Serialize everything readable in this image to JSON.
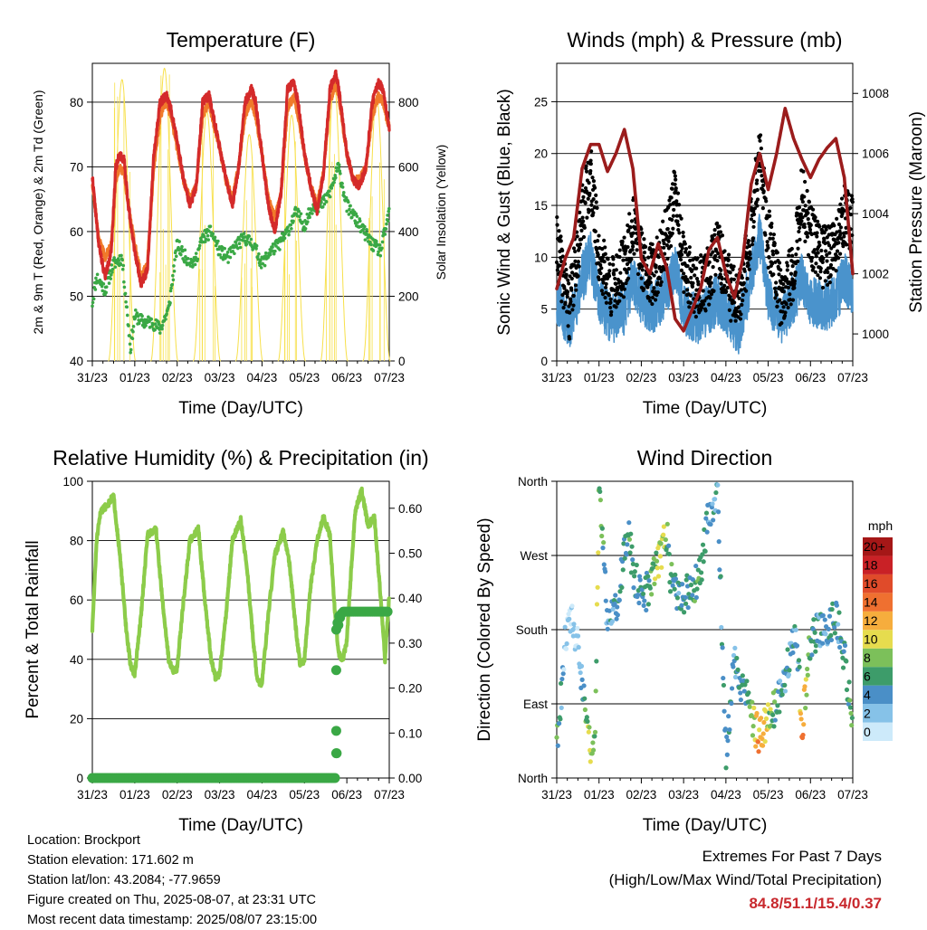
{
  "info": {
    "location": "Location: Brockport",
    "elevation": "Station elevation: 171.602 m",
    "latlon": "Station lat/lon: 43.2084; -77.9659",
    "created": "Figure created on Thu, 2025-08-07, at 23:31 UTC",
    "recent": "Most recent data timestamp: 2025/08/07 23:15:00"
  },
  "extremes": {
    "title": "Extremes For Past 7 Days",
    "subtitle": "(High/Low/Max Wind/Total Precipitation)",
    "values": "84.8/51.1/15.4/0.37"
  },
  "colors": {
    "temp9m": "#d42a2a",
    "temp2m": "#f07a2a",
    "dewpoint": "#3aa845",
    "solar": "#f7e04a",
    "wind": "#4a93cc",
    "gust": "#000000",
    "pressure": "#9b1c1c",
    "rh": "#8ccc4a",
    "precip": "#3aa845"
  },
  "chart_data": [
    {
      "type": "line",
      "title": "Temperature (F)",
      "xlabel": "Time (Day/UTC)",
      "ylabel": "2m & 9m T (Red, Orange) & 2m Td (Green)",
      "y2label": "Solar Insolation (Yellow)",
      "x_ticks": [
        "31/23",
        "01/23",
        "02/23",
        "03/23",
        "04/23",
        "05/23",
        "06/23",
        "07/23"
      ],
      "ylim": [
        40,
        86
      ],
      "yticks": [
        40,
        50,
        60,
        70,
        80
      ],
      "y2lim": [
        0,
        920
      ],
      "y2ticks": [
        0,
        200,
        400,
        600,
        800
      ],
      "x_range_days": [
        0,
        7
      ],
      "series": [
        {
          "name": "9m T",
          "color": "#d42a2a",
          "x": [
            0,
            0.15,
            0.3,
            0.45,
            0.55,
            0.65,
            0.75,
            0.85,
            1.0,
            1.15,
            1.3,
            1.45,
            1.6,
            1.75,
            1.85,
            2.0,
            2.15,
            2.3,
            2.45,
            2.6,
            2.75,
            2.85,
            3.0,
            3.15,
            3.3,
            3.45,
            3.6,
            3.75,
            3.85,
            4.0,
            4.15,
            4.3,
            4.45,
            4.6,
            4.75,
            4.85,
            5.0,
            5.15,
            5.3,
            5.45,
            5.6,
            5.75,
            5.85,
            6.0,
            6.15,
            6.3,
            6.45,
            6.6,
            6.75,
            6.85,
            7.0
          ],
          "y": [
            68.5,
            58,
            53,
            57,
            70,
            72,
            71,
            64,
            57,
            52,
            54,
            72,
            80,
            81,
            79,
            74,
            68,
            64,
            67,
            80,
            81,
            78,
            73,
            68,
            64,
            70,
            80,
            82,
            80,
            72,
            64,
            60,
            66,
            82,
            83,
            80,
            72,
            67,
            63,
            69,
            82,
            84.5,
            80,
            72,
            68,
            67,
            70,
            80,
            83,
            82,
            76
          ]
        },
        {
          "name": "2m T",
          "color": "#f07a2a",
          "x": [
            0,
            0.15,
            0.3,
            0.45,
            0.55,
            0.65,
            0.75,
            0.85,
            1.0,
            1.15,
            1.3,
            1.45,
            1.6,
            1.75,
            1.85,
            2.0,
            2.15,
            2.3,
            2.45,
            2.6,
            2.75,
            2.85,
            3.0,
            3.15,
            3.3,
            3.45,
            3.6,
            3.75,
            3.85,
            4.0,
            4.15,
            4.3,
            4.45,
            4.6,
            4.75,
            4.85,
            5.0,
            5.15,
            5.3,
            5.45,
            5.6,
            5.75,
            5.85,
            6.0,
            6.15,
            6.3,
            6.45,
            6.6,
            6.75,
            6.85,
            7.0
          ],
          "y": [
            67.5,
            59,
            56,
            58,
            68,
            70,
            69,
            64,
            58,
            53,
            55,
            70,
            78,
            80,
            78,
            73,
            68,
            65,
            67,
            78,
            80,
            77,
            73,
            68,
            65,
            70,
            78,
            80,
            78,
            72,
            65,
            62,
            66,
            79,
            81,
            78,
            72,
            67,
            64,
            69,
            80,
            83,
            79,
            72,
            68,
            68,
            70,
            78,
            81,
            80,
            76
          ]
        },
        {
          "name": "2m Td",
          "color": "#3aa845",
          "x": [
            0,
            0.1,
            0.3,
            0.5,
            0.7,
            0.9,
            1.0,
            1.2,
            1.4,
            1.6,
            1.8,
            2.0,
            2.2,
            2.4,
            2.6,
            2.8,
            3.0,
            3.2,
            3.4,
            3.6,
            3.8,
            4.0,
            4.2,
            4.4,
            4.6,
            4.8,
            5.0,
            5.2,
            5.4,
            5.6,
            5.8,
            6.0,
            6.2,
            6.4,
            6.6,
            6.8,
            7.0
          ],
          "y": [
            49,
            53,
            51,
            55,
            56,
            42,
            47,
            46,
            46,
            45,
            48,
            58,
            56,
            55,
            59,
            60,
            57,
            56,
            58,
            59,
            58,
            55,
            57,
            58,
            60,
            63,
            61,
            64,
            64,
            66,
            70,
            64,
            62,
            60,
            58,
            57,
            63
          ]
        },
        {
          "name": "Solar Insolation",
          "color": "#f7e04a",
          "axis": "y2",
          "peaks_day": [
            0.7,
            1.7,
            2.7,
            3.7,
            4.7,
            5.7,
            6.7
          ],
          "peaks_value": [
            870,
            905,
            770,
            700,
            760,
            860,
            820
          ]
        }
      ]
    },
    {
      "type": "scatter",
      "title": "Winds (mph) & Pressure (mb)",
      "xlabel": "Time (Day/UTC)",
      "ylabel": "Sonic Wind & Gust (Blue, Black)",
      "y2label": "Station Pressure (Maroon)",
      "x_ticks": [
        "31/23",
        "01/23",
        "02/23",
        "03/23",
        "04/23",
        "05/23",
        "06/23",
        "07/23"
      ],
      "ylim": [
        0,
        28.7
      ],
      "yticks": [
        0,
        5,
        10,
        15,
        20,
        25
      ],
      "y2lim": [
        999.1,
        1009
      ],
      "y2ticks": [
        1000,
        1002,
        1004,
        1006,
        1008
      ],
      "x_range_days": [
        0,
        7
      ],
      "series": [
        {
          "name": "Gust",
          "color": "#000000",
          "x": [
            0,
            0.3,
            0.6,
            0.8,
            1.0,
            1.3,
            1.6,
            1.8,
            2.0,
            2.3,
            2.6,
            2.8,
            3.0,
            3.3,
            3.6,
            3.8,
            4.0,
            4.3,
            4.6,
            4.8,
            5.0,
            5.3,
            5.6,
            5.8,
            6.0,
            6.3,
            6.6,
            6.8,
            7.0
          ],
          "y": [
            11,
            5,
            14,
            18,
            10,
            7,
            9,
            13,
            10,
            8,
            12,
            16,
            9,
            7,
            8,
            11,
            8,
            5,
            13,
            20,
            12,
            6,
            9,
            16,
            12,
            10,
            11,
            14,
            13
          ]
        },
        {
          "name": "Wind",
          "color": "#4a93cc",
          "x": [
            0,
            0.3,
            0.6,
            0.8,
            1.0,
            1.3,
            1.6,
            1.8,
            2.0,
            2.3,
            2.6,
            2.8,
            3.0,
            3.3,
            3.6,
            3.8,
            4.0,
            4.3,
            4.6,
            4.8,
            5.0,
            5.3,
            5.6,
            5.8,
            6.0,
            6.3,
            6.6,
            6.8,
            7.0
          ],
          "y": [
            6,
            3,
            8,
            10,
            6,
            4,
            5,
            8,
            6,
            5,
            7,
            9,
            5,
            4,
            5,
            6,
            5,
            3,
            8,
            12,
            6,
            4,
            6,
            8,
            6,
            5,
            6,
            8,
            7
          ]
        },
        {
          "name": "Station Pressure",
          "color": "#9b1c1c",
          "axis": "y2",
          "x": [
            0,
            0.2,
            0.4,
            0.6,
            0.8,
            1.0,
            1.2,
            1.4,
            1.6,
            1.8,
            2.0,
            2.2,
            2.4,
            2.6,
            2.8,
            3.0,
            3.2,
            3.4,
            3.6,
            3.8,
            4.0,
            4.2,
            4.4,
            4.6,
            4.8,
            5.0,
            5.2,
            5.4,
            5.6,
            5.8,
            6.0,
            6.2,
            6.4,
            6.6,
            6.8,
            7.0
          ],
          "y": [
            1001.5,
            1002.5,
            1003.2,
            1005.5,
            1006.3,
            1006.3,
            1005.4,
            1006.0,
            1006.8,
            1005.5,
            1002.5,
            1002.0,
            1003.0,
            1002.2,
            1000.5,
            1000.1,
            1000.8,
            1001.5,
            1002.8,
            1003.2,
            1002.0,
            1001.2,
            1002.5,
            1005.0,
            1006.0,
            1004.8,
            1006.0,
            1007.5,
            1006.5,
            1005.8,
            1005.2,
            1005.8,
            1006.2,
            1006.5,
            1005.2,
            1002.0
          ]
        }
      ]
    },
    {
      "type": "line",
      "title": "Relative Humidity (%) & Precipitation (in)",
      "xlabel": "Time (Day/UTC)",
      "ylabel": "Percent & Total Rainfall",
      "x_ticks": [
        "31/23",
        "01/23",
        "02/23",
        "03/23",
        "04/23",
        "05/23",
        "06/23",
        "07/23"
      ],
      "ylim": [
        0,
        100
      ],
      "yticks": [
        0,
        20,
        40,
        60,
        80,
        100
      ],
      "y2lim": [
        0,
        0.66
      ],
      "y2ticks": [
        "0.00",
        "0.10",
        "0.20",
        "0.30",
        "0.40",
        "0.50",
        "0.60"
      ],
      "x_range_days": [
        0,
        7
      ],
      "series": [
        {
          "name": "RH",
          "color": "#8ccc4a",
          "x": [
            0,
            0.1,
            0.2,
            0.35,
            0.5,
            0.65,
            0.8,
            0.9,
            1.0,
            1.15,
            1.3,
            1.5,
            1.65,
            1.8,
            1.9,
            2.0,
            2.15,
            2.3,
            2.5,
            2.65,
            2.8,
            2.9,
            3.0,
            3.15,
            3.3,
            3.5,
            3.65,
            3.8,
            3.9,
            4.0,
            4.15,
            4.3,
            4.5,
            4.65,
            4.8,
            4.9,
            5.0,
            5.15,
            5.3,
            5.45,
            5.6,
            5.7,
            5.8,
            5.9,
            6.0,
            6.1,
            6.2,
            6.35,
            6.5,
            6.65,
            6.8,
            6.9,
            7.0
          ],
          "y": [
            50,
            80,
            90,
            92,
            95,
            75,
            50,
            38,
            35,
            55,
            82,
            84,
            60,
            40,
            36,
            37,
            60,
            80,
            84,
            60,
            40,
            34,
            35,
            55,
            80,
            87,
            70,
            45,
            32,
            32,
            55,
            75,
            83,
            72,
            50,
            38,
            40,
            65,
            80,
            88,
            82,
            60,
            42,
            40,
            46,
            70,
            90,
            97,
            85,
            88,
            60,
            40,
            62
          ]
        },
        {
          "name": "Precipitation",
          "color": "#3aa845",
          "axis": "y2",
          "x": [
            0,
            5.55,
            5.75,
            5.76,
            5.77,
            5.78,
            5.8,
            5.82,
            5.85,
            5.9,
            6.0,
            7.0
          ],
          "y": [
            0,
            0,
            0.0,
            0.055,
            0.105,
            0.24,
            0.34,
            0.35,
            0.36,
            0.37,
            0.37,
            0.37
          ]
        }
      ]
    },
    {
      "type": "scatter",
      "title": "Wind Direction",
      "xlabel": "Time (Day/UTC)",
      "ylabel": "Direction (Colored By Speed)",
      "x_ticks": [
        "31/23",
        "01/23",
        "02/23",
        "03/23",
        "04/23",
        "05/23",
        "06/23",
        "07/23"
      ],
      "yticks": [
        "North",
        "East",
        "South",
        "West",
        "North"
      ],
      "ylim": [
        0,
        360
      ],
      "x_range_days": [
        0,
        7
      ],
      "legend": {
        "title": "mph",
        "labels": [
          "0",
          "2",
          "4",
          "6",
          "8",
          "10",
          "12",
          "14",
          "16",
          "18",
          "20+"
        ],
        "colors": [
          "#cdeafa",
          "#86c2e8",
          "#4a8fc7",
          "#3d9c6a",
          "#7cc05a",
          "#e6dc4e",
          "#f6ad3d",
          "#ef7030",
          "#e04b2a",
          "#c92126",
          "#a51717"
        ]
      },
      "series": [
        {
          "name": "Direction",
          "x": [
            0.05,
            0.2,
            0.35,
            0.5,
            0.8,
            0.9,
            1.0,
            1.2,
            1.4,
            1.6,
            1.7,
            1.8,
            2.0,
            2.2,
            2.4,
            2.5,
            2.6,
            2.7,
            2.8,
            3.0,
            3.2,
            3.4,
            3.6,
            3.8,
            4.0,
            4.2,
            4.4,
            4.6,
            4.7,
            4.8,
            5.0,
            5.2,
            5.4,
            5.6,
            5.7,
            5.8,
            6.0,
            6.2,
            6.4,
            6.6,
            6.8,
            7.0
          ],
          "y": [
            60,
            170,
            190,
            160,
            30,
            40,
            350,
            190,
            200,
            270,
            300,
            250,
            220,
            230,
            260,
            280,
            300,
            240,
            230,
            220,
            230,
            250,
            320,
            350,
            30,
            140,
            110,
            80,
            60,
            50,
            70,
            90,
            120,
            170,
            150,
            60,
            170,
            180,
            180,
            200,
            150,
            60
          ],
          "speed": [
            6,
            1,
            1,
            1,
            9,
            8,
            8,
            3,
            4,
            5,
            6,
            5,
            5,
            6,
            9,
            10,
            7,
            6,
            5,
            4,
            5,
            6,
            4,
            4,
            5,
            4,
            5,
            7,
            10,
            13,
            9,
            5,
            4,
            4,
            3,
            14,
            5,
            4,
            4,
            5,
            4,
            8
          ]
        }
      ]
    }
  ]
}
